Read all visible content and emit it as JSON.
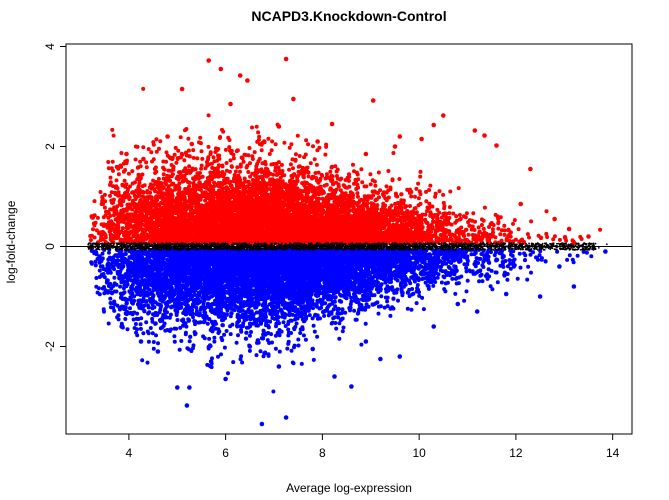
{
  "chart_data": {
    "type": "scatter",
    "title": "NCAPD3.Knockdown-Control",
    "xlabel": "Average log-expression",
    "ylabel": "log-fold-change",
    "xlim": [
      2.7,
      14.4
    ],
    "ylim": [
      -3.75,
      4.05
    ],
    "x_ticks": [
      4,
      6,
      8,
      10,
      12,
      14
    ],
    "y_ticks": [
      -2,
      0,
      2,
      4
    ],
    "x_tick_labels": [
      "4",
      "6",
      "8",
      "10",
      "12",
      "14"
    ],
    "y_tick_labels": [
      "-2",
      "0",
      "2",
      "4"
    ],
    "reference_line_y": 0,
    "series": [
      {
        "color": "#ff0000",
        "point_size": 4,
        "points": [
          [
            5.65,
            3.72
          ],
          [
            7.25,
            3.75
          ],
          [
            5.9,
            3.55
          ],
          [
            6.3,
            3.42
          ],
          [
            6.45,
            3.32
          ],
          [
            5.1,
            3.15
          ],
          [
            7.4,
            2.95
          ],
          [
            6.1,
            2.85
          ],
          [
            9.05,
            2.92
          ],
          [
            10.5,
            2.62
          ],
          [
            10.3,
            2.43
          ],
          [
            11.15,
            2.32
          ],
          [
            11.35,
            2.22
          ],
          [
            3.95,
            1.85
          ],
          [
            4.3,
            1.75
          ],
          [
            7.1,
            2.4
          ],
          [
            8.2,
            2.45
          ],
          [
            9.6,
            2.2
          ],
          [
            9.5,
            2.0
          ],
          [
            10.05,
            2.15
          ],
          [
            11.6,
            2.02
          ],
          [
            8.9,
            1.85
          ],
          [
            12.3,
            1.55
          ],
          [
            6.8,
            2.1
          ],
          [
            5.3,
            2.05
          ],
          [
            4.8,
            2.2
          ],
          [
            7.9,
            2.1
          ],
          [
            12.1,
            0.85
          ],
          [
            12.8,
            0.55
          ],
          [
            13.1,
            0.35
          ],
          [
            13.5,
            0.2
          ],
          [
            13.2,
            0.08
          ]
        ]
      },
      {
        "color": "#0000ff",
        "point_size": 4,
        "points": [
          [
            6.75,
            -3.55
          ],
          [
            7.25,
            -3.42
          ],
          [
            5.2,
            -3.18
          ],
          [
            5.25,
            -2.82
          ],
          [
            5.0,
            -2.82
          ],
          [
            6.0,
            -2.65
          ],
          [
            8.6,
            -2.8
          ],
          [
            8.25,
            -2.6
          ],
          [
            7.1,
            -2.4
          ],
          [
            9.2,
            -2.25
          ],
          [
            9.6,
            -2.2
          ],
          [
            10.3,
            -1.6
          ],
          [
            11.2,
            -1.3
          ],
          [
            12.5,
            -1.0
          ],
          [
            13.2,
            -0.8
          ],
          [
            13.85,
            -0.1
          ],
          [
            4.6,
            -2.1
          ],
          [
            4.25,
            -1.9
          ],
          [
            5.7,
            -2.3
          ],
          [
            6.5,
            -2.0
          ],
          [
            7.8,
            -2.05
          ],
          [
            8.9,
            -1.9
          ],
          [
            3.55,
            -0.72
          ],
          [
            3.85,
            -1.6
          ],
          [
            10.8,
            -1.15
          ],
          [
            11.8,
            -0.95
          ],
          [
            12.9,
            -0.4
          ]
        ]
      }
    ]
  }
}
